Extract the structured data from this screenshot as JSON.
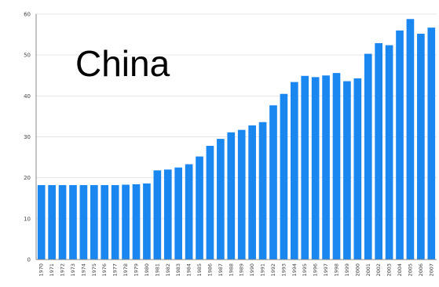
{
  "chart_data": {
    "type": "bar",
    "title": "China",
    "xlabel": "",
    "ylabel": "",
    "ylim": [
      0,
      60
    ],
    "yticks": [
      0,
      10,
      20,
      30,
      40,
      50,
      60
    ],
    "grid": true,
    "bar_color": "#1a86f0",
    "categories": [
      "1970",
      "1971",
      "1972",
      "1973",
      "1974",
      "1975",
      "1976",
      "1977",
      "1978",
      "1979",
      "1980",
      "1981",
      "1982",
      "1983",
      "1984",
      "1985",
      "1986",
      "1987",
      "1988",
      "1989",
      "1990",
      "1991",
      "1992",
      "1993",
      "1994",
      "1995",
      "1996",
      "1997",
      "1998",
      "1999",
      "2000",
      "2001",
      "2002",
      "2003",
      "2004",
      "2005",
      "2006",
      "2007"
    ],
    "values": [
      18.2,
      18.2,
      18.2,
      18.2,
      18.2,
      18.2,
      18.2,
      18.2,
      18.3,
      18.4,
      18.6,
      21.8,
      22.0,
      22.5,
      23.3,
      25.2,
      27.8,
      29.5,
      31.1,
      31.7,
      32.8,
      33.6,
      37.7,
      40.5,
      43.4,
      44.9,
      44.6,
      45.0,
      45.6,
      43.6,
      44.3,
      50.3,
      52.9,
      52.4,
      56.0,
      58.8,
      55.2,
      56.7
    ]
  }
}
